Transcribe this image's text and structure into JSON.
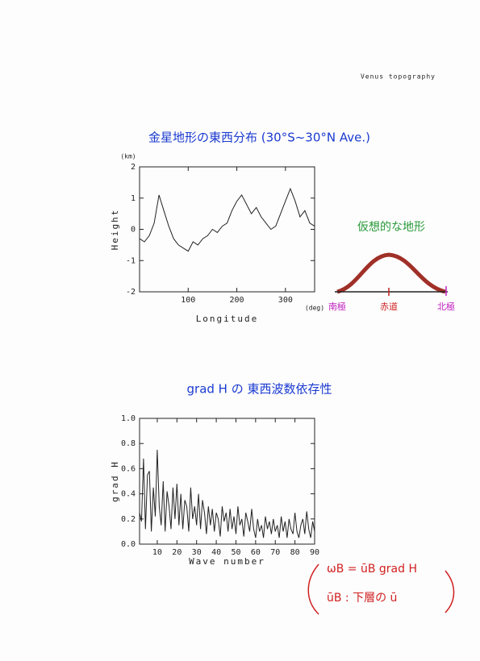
{
  "header": "Venus topography",
  "chart_data": [
    {
      "type": "line",
      "title": "金星地形の東西分布 (30°S~30°N Ave.)",
      "y_unit": "(km)",
      "x_unit": "(deg)",
      "ylabel": "Height",
      "xlabel": "Longitude",
      "x": [
        0,
        10,
        20,
        30,
        40,
        50,
        60,
        70,
        80,
        90,
        100,
        110,
        120,
        130,
        140,
        150,
        160,
        170,
        180,
        190,
        200,
        210,
        220,
        230,
        240,
        250,
        260,
        270,
        280,
        290,
        300,
        310,
        320,
        330,
        340,
        350,
        360
      ],
      "values": [
        -0.3,
        -0.4,
        -0.2,
        0.2,
        1.1,
        0.6,
        0.1,
        -0.3,
        -0.5,
        -0.6,
        -0.7,
        -0.4,
        -0.5,
        -0.3,
        -0.2,
        0.0,
        -0.1,
        0.1,
        0.2,
        0.6,
        0.9,
        1.1,
        0.8,
        0.5,
        0.7,
        0.4,
        0.2,
        0.0,
        0.1,
        0.5,
        0.9,
        1.3,
        0.9,
        0.4,
        0.6,
        0.2,
        0.1
      ],
      "color": "#222222",
      "xlim": [
        0,
        360
      ],
      "xticks": [
        100,
        200,
        300
      ],
      "ylim": [
        -2,
        2
      ],
      "yticks": [
        -2,
        -1,
        0,
        1,
        2
      ]
    },
    {
      "type": "line",
      "title": "grad H の 東西波数依存性",
      "ylabel": "grad H",
      "xlabel": "Wave number",
      "x": [
        1,
        2,
        3,
        4,
        5,
        6,
        7,
        8,
        9,
        10,
        11,
        12,
        13,
        14,
        15,
        16,
        17,
        18,
        19,
        20,
        21,
        22,
        23,
        24,
        25,
        26,
        27,
        28,
        29,
        30,
        31,
        32,
        33,
        34,
        35,
        36,
        37,
        38,
        39,
        40,
        41,
        42,
        43,
        44,
        45,
        46,
        47,
        48,
        49,
        50,
        51,
        52,
        53,
        54,
        55,
        56,
        57,
        58,
        59,
        60,
        61,
        62,
        63,
        64,
        65,
        66,
        67,
        68,
        69,
        70,
        71,
        72,
        73,
        74,
        75,
        76,
        77,
        78,
        79,
        80,
        81,
        82,
        83,
        84,
        85,
        86,
        87,
        88,
        89,
        90
      ],
      "values": [
        0.25,
        0.18,
        0.68,
        0.12,
        0.55,
        0.58,
        0.1,
        0.45,
        0.22,
        0.75,
        0.3,
        0.15,
        0.5,
        0.1,
        0.42,
        0.3,
        0.12,
        0.45,
        0.2,
        0.48,
        0.15,
        0.4,
        0.12,
        0.35,
        0.3,
        0.1,
        0.45,
        0.2,
        0.3,
        0.15,
        0.4,
        0.12,
        0.35,
        0.25,
        0.08,
        0.3,
        0.15,
        0.28,
        0.1,
        0.25,
        0.2,
        0.06,
        0.3,
        0.18,
        0.25,
        0.1,
        0.28,
        0.12,
        0.22,
        0.08,
        0.3,
        0.15,
        0.2,
        0.06,
        0.25,
        0.18,
        0.1,
        0.28,
        0.12,
        0.05,
        0.2,
        0.1,
        0.15,
        0.05,
        0.22,
        0.12,
        0.18,
        0.08,
        0.2,
        0.1,
        0.15,
        0.05,
        0.22,
        0.1,
        0.18,
        0.05,
        0.2,
        0.12,
        0.08,
        0.25,
        0.1,
        0.05,
        0.15,
        0.2,
        0.08,
        0.26,
        0.12,
        0.05,
        0.18,
        0.1
      ],
      "color": "#222222",
      "xlim": [
        1,
        90
      ],
      "xticks": [
        10,
        20,
        30,
        40,
        50,
        60,
        70,
        80,
        90
      ],
      "ylim": [
        0,
        1
      ],
      "yticks": [
        {
          "value": 0,
          "label": "0.0"
        },
        {
          "value": 0.2,
          "label": "0.2"
        },
        {
          "value": 0.4,
          "label": "0.4"
        },
        {
          "value": 0.6,
          "label": "0.6"
        },
        {
          "value": 0.8,
          "label": "0.8"
        },
        {
          "value": 1,
          "label": "1.0"
        }
      ]
    }
  ],
  "sketch": {
    "title": "仮想的な地形",
    "south": "南極",
    "equator": "赤道",
    "north": "北極"
  },
  "notes": {
    "line1": "ωB = ūB grad H",
    "line2": "ūB : 下層の ū"
  }
}
